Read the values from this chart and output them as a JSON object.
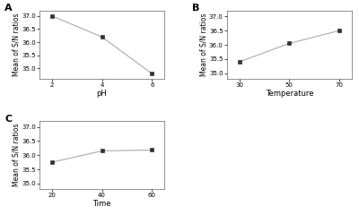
{
  "subplot_A": {
    "label": "A",
    "x": [
      2,
      4,
      6
    ],
    "y": [
      37.0,
      36.2,
      34.8
    ],
    "xlabel": "pH",
    "ylabel": "Mean of S/N ratios",
    "xlim": [
      1.5,
      6.5
    ],
    "ylim": [
      34.6,
      37.2
    ],
    "yticks": [
      35.0,
      35.5,
      36.0,
      36.5,
      37.0
    ],
    "xticks": [
      2,
      4,
      6
    ]
  },
  "subplot_B": {
    "label": "B",
    "x": [
      30,
      50,
      70
    ],
    "y": [
      35.4,
      36.05,
      36.5
    ],
    "xlabel": "Temperature",
    "ylabel": "Mean of S/N ratios",
    "xlim": [
      25,
      75
    ],
    "ylim": [
      34.8,
      37.2
    ],
    "yticks": [
      35.0,
      35.5,
      36.0,
      36.5,
      37.0
    ],
    "xticks": [
      30,
      50,
      70
    ]
  },
  "subplot_C": {
    "label": "C",
    "x": [
      20,
      40,
      60
    ],
    "y": [
      35.75,
      36.15,
      36.18
    ],
    "xlabel": "Time",
    "ylabel": "Mean of S/N ratios",
    "xlim": [
      15,
      65
    ],
    "ylim": [
      34.8,
      37.2
    ],
    "yticks": [
      35.0,
      35.5,
      36.0,
      36.5,
      37.0
    ],
    "xticks": [
      20,
      40,
      60
    ]
  },
  "line_color": "#aaaaaa",
  "marker": "s",
  "marker_color": "#333333",
  "marker_size": 3.5,
  "font_size": 5.5,
  "label_font_size": 6,
  "tick_font_size": 5.0,
  "bg_color": "#ffffff"
}
